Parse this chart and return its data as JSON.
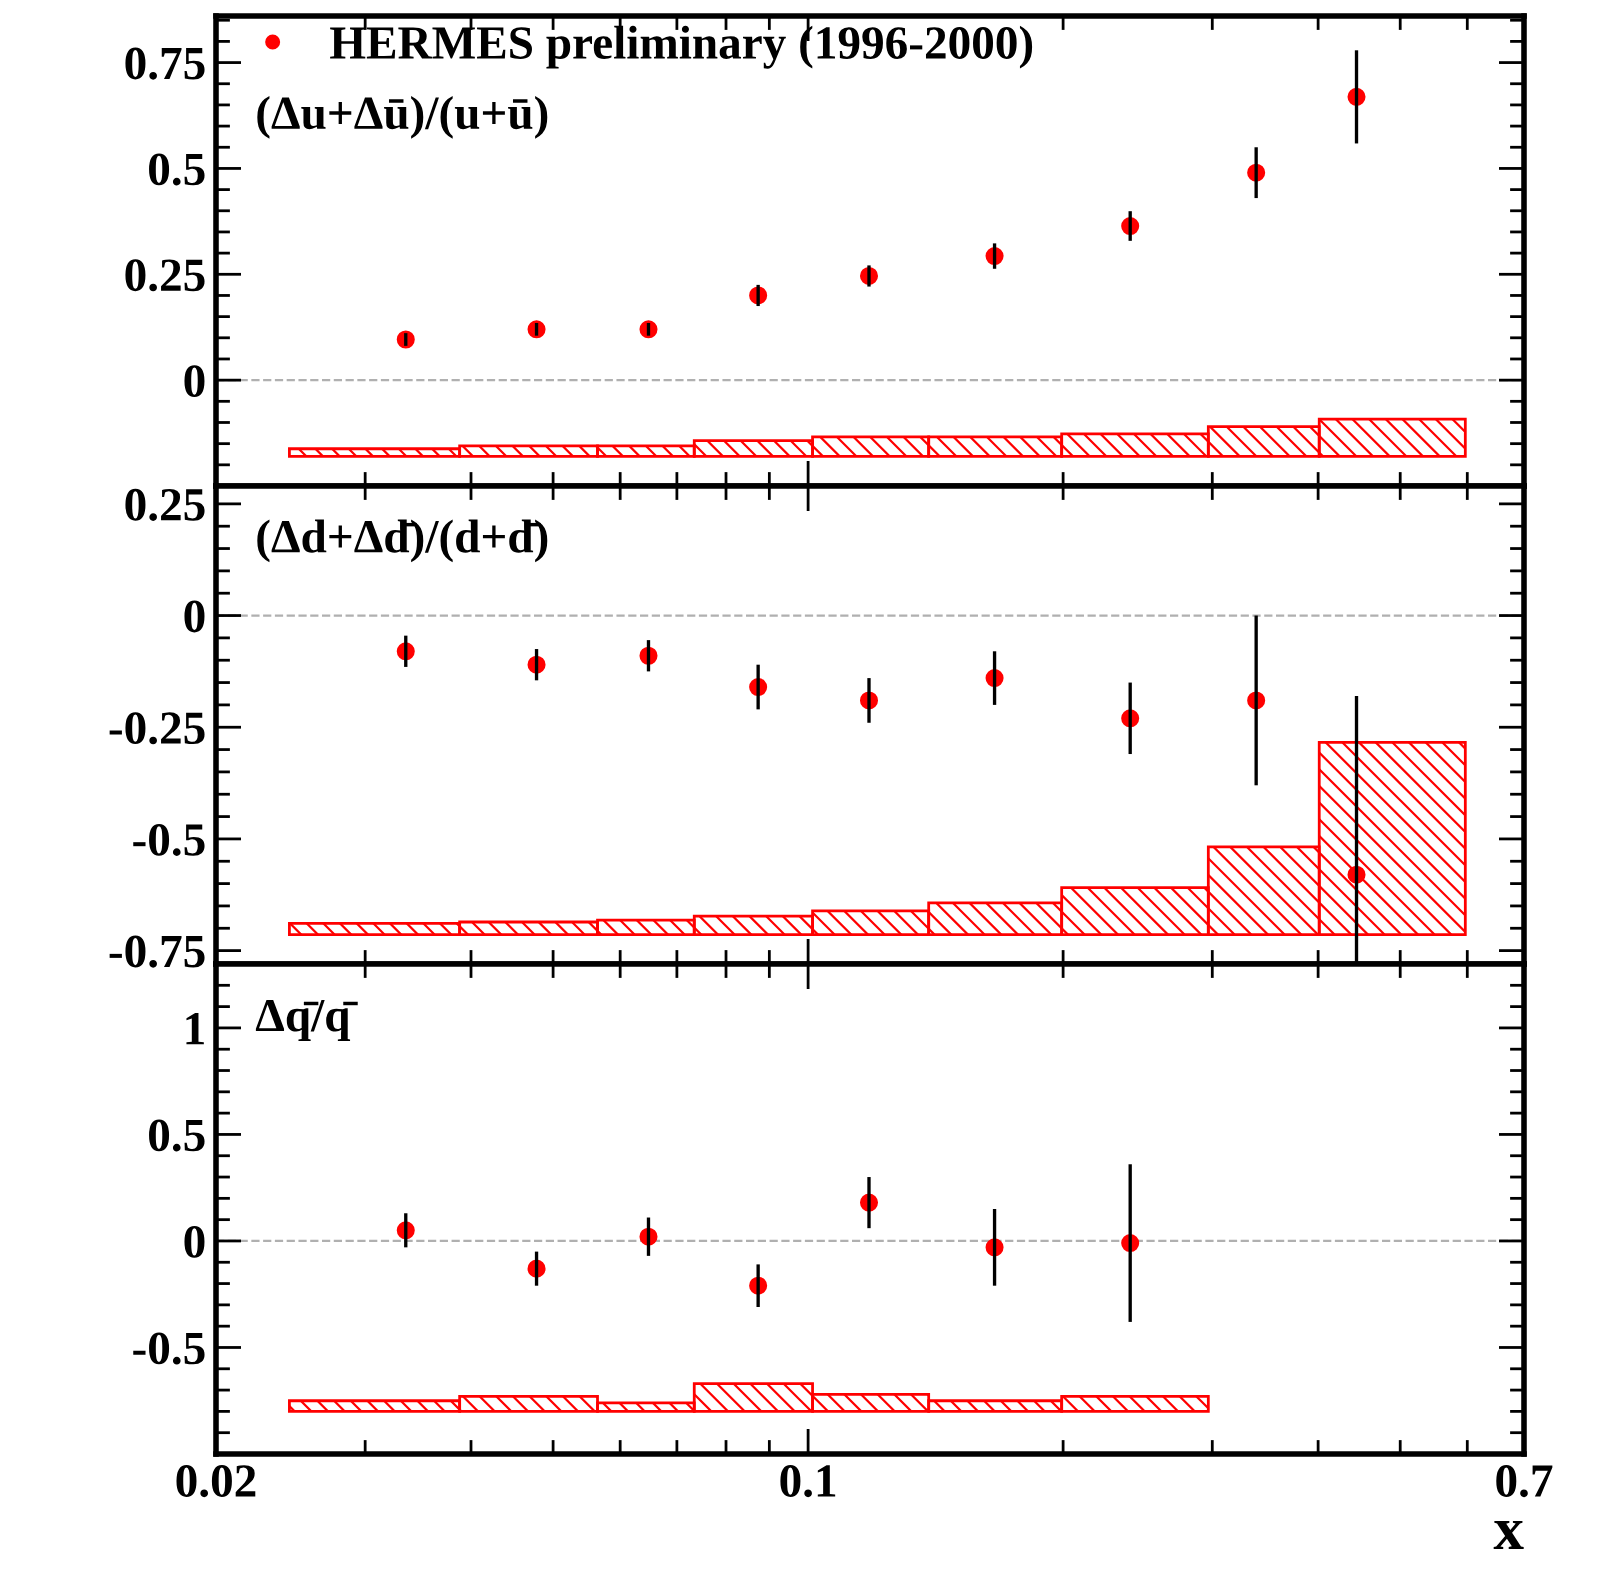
{
  "chart_data": [
    {
      "type": "scatter",
      "legend": "top left",
      "marker": "circle",
      "tick_labels": "y",
      "log": "x",
      "xlim": [
        0.02,
        0.7
      ],
      "xticks": [
        0.02,
        0.1,
        0.7
      ],
      "ylim": [
        -0.25,
        0.86
      ],
      "yticks": [
        0,
        0.25,
        0.5,
        0.75
      ],
      "annotations": [
        "(Δu+Δū)/(u+ū)"
      ],
      "ref_lines": [
        {
          "axis": "y",
          "value": 0,
          "color": "#b0b0b0",
          "line_style": "dashed"
        }
      ],
      "series": [
        {
          "name": "HERMES preliminary (1996-2000)",
          "color": "#ff0000",
          "x": [
            0.0335,
            0.0478,
            0.0648,
            0.0873,
            0.118,
            0.166,
            0.24,
            0.338,
            0.444
          ],
          "values": [
            0.096,
            0.12,
            0.12,
            0.2,
            0.246,
            0.293,
            0.364,
            0.49,
            0.669
          ],
          "errors": [
            0.015,
            0.015,
            0.015,
            0.025,
            0.025,
            0.03,
            0.035,
            0.06,
            0.11
          ]
        },
        {
          "type": "bar",
          "color": "#ff0000",
          "x": [
            0.0316,
            0.0476,
            0.0649,
            0.0873,
            0.12,
            0.169,
            0.248,
            0.349,
            0.499
          ],
          "base": [
            -0.18,
            -0.18,
            -0.18,
            -0.18,
            -0.18,
            -0.18,
            -0.18,
            -0.18,
            -0.18
          ],
          "values": [
            0.018,
            0.025,
            0.025,
            0.037,
            0.046,
            0.046,
            0.053,
            0.07,
            0.088
          ]
        }
      ]
    },
    {
      "type": "scatter",
      "marker": "circle",
      "tick_labels": "y",
      "log": "x",
      "xlim": [
        0.02,
        0.7
      ],
      "xticks": [
        0.02,
        0.1,
        0.7
      ],
      "ylim": [
        -0.78,
        0.29
      ],
      "yticks": [
        -0.75,
        -0.5,
        -0.25,
        0,
        0.25
      ],
      "annotations": [
        "(Δd+Δd̄)/(d+d̄)"
      ],
      "ref_lines": [
        {
          "axis": "y",
          "value": 0,
          "color": "#b0b0b0",
          "line_style": "dashed"
        }
      ],
      "series": [
        {
          "color": "#ff0000",
          "x": [
            0.0335,
            0.0478,
            0.0648,
            0.0873,
            0.118,
            0.166,
            0.24,
            0.338,
            0.444
          ],
          "values": [
            -0.08,
            -0.11,
            -0.09,
            -0.16,
            -0.19,
            -0.14,
            -0.23,
            -0.19,
            -0.58
          ],
          "errors": [
            0.035,
            0.035,
            0.035,
            0.05,
            0.05,
            0.06,
            0.08,
            0.19,
            [
              -0.78,
              -0.18
            ]
          ]
        },
        {
          "type": "bar",
          "color": "#ff0000",
          "x": [
            0.0316,
            0.0476,
            0.0649,
            0.0873,
            0.12,
            0.169,
            0.248,
            0.349,
            0.499
          ],
          "base": [
            -0.714,
            -0.714,
            -0.714,
            -0.714,
            -0.714,
            -0.714,
            -0.714,
            -0.714,
            -0.714
          ],
          "values": [
            0.025,
            0.028,
            0.032,
            0.041,
            0.053,
            0.071,
            0.105,
            0.196,
            0.43
          ]
        }
      ]
    },
    {
      "type": "scatter",
      "marker": "circle",
      "log": "x",
      "xlabel": "x",
      "xlim": [
        0.02,
        0.7
      ],
      "xticks": [
        0.02,
        0.1,
        0.7
      ],
      "ylim": [
        -1.0,
        1.3
      ],
      "yticks": [
        -0.5,
        0,
        0.5,
        1
      ],
      "annotations": [
        "Δq̄/q̄"
      ],
      "ref_lines": [
        {
          "axis": "y",
          "value": 0,
          "color": "#b0b0b0",
          "line_style": "dashed"
        }
      ],
      "series": [
        {
          "color": "#ff0000",
          "x": [
            0.0335,
            0.0478,
            0.0648,
            0.0873,
            0.118,
            0.166,
            0.24
          ],
          "values": [
            0.05,
            -0.13,
            0.02,
            -0.21,
            0.18,
            -0.03,
            -0.01
          ],
          "errors": [
            0.08,
            0.08,
            0.09,
            0.1,
            0.12,
            0.18,
            0.37
          ]
        },
        {
          "type": "bar",
          "color": "#ff0000",
          "x": [
            0.0316,
            0.0476,
            0.0649,
            0.0873,
            0.12,
            0.169,
            0.248
          ],
          "base": [
            -0.8,
            -0.8,
            -0.8,
            -0.8,
            -0.8,
            -0.8,
            -0.8
          ],
          "values": [
            0.05,
            0.07,
            0.04,
            0.13,
            0.08,
            0.05,
            0.07
          ]
        }
      ]
    }
  ]
}
